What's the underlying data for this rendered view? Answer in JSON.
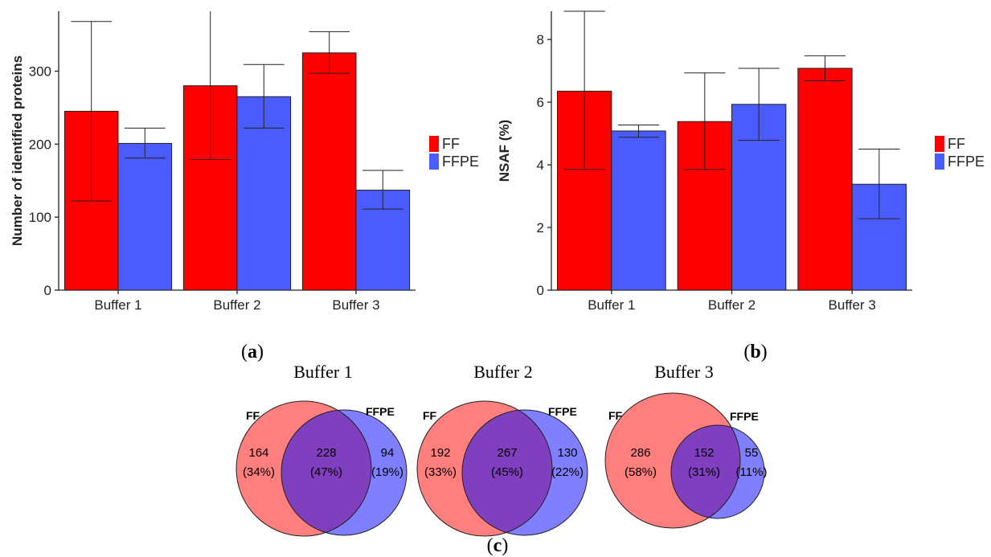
{
  "chart_data": [
    {
      "panel": "(a)",
      "type": "bar",
      "categories": [
        "Buffer 1",
        "Buffer 2",
        "Buffer 3"
      ],
      "series": [
        {
          "name": "FF",
          "color": "#ff0000",
          "values": [
            245,
            280,
            325
          ],
          "err_low": [
            122,
            179,
            297
          ],
          "err_high": [
            368,
            390,
            354
          ]
        },
        {
          "name": "FFPE",
          "color": "#4b5cff",
          "values": [
            201,
            265,
            137
          ],
          "err_low": [
            181,
            222,
            111
          ],
          "err_high": [
            222,
            309,
            164
          ]
        }
      ],
      "ylabel": "Number of identified proteins",
      "xlabel": "",
      "ylim": [
        0,
        382
      ],
      "yticks": [
        0,
        100,
        200,
        300
      ],
      "legend": "right",
      "grid": false
    },
    {
      "panel": "(b)",
      "type": "bar",
      "categories": [
        "Buffer 1",
        "Buffer 2",
        "Buffer 3"
      ],
      "series": [
        {
          "name": "FF",
          "color": "#ff0000",
          "values": [
            6.35,
            5.38,
            7.08
          ],
          "err_low": [
            3.85,
            3.85,
            6.68
          ],
          "err_high": [
            8.9,
            6.93,
            7.48
          ]
        },
        {
          "name": "FFPE",
          "color": "#4b5cff",
          "values": [
            5.08,
            5.93,
            3.38
          ],
          "err_low": [
            4.88,
            4.78,
            2.28
          ],
          "err_high": [
            5.27,
            7.08,
            4.5
          ]
        }
      ],
      "ylabel": "NSAF (%)",
      "xlabel": "",
      "ylim": [
        0,
        8.9
      ],
      "yticks": [
        0,
        2,
        4,
        6,
        8
      ],
      "legend": "right",
      "grid": false
    },
    {
      "panel": "(c)",
      "type": "venn",
      "sets": [
        "FF",
        "FFPE"
      ],
      "colors": {
        "FF": "#ff7f7f",
        "FFPE": "#7f7fff",
        "overlap": "#7f3fbf"
      },
      "diagrams": [
        {
          "title": "Buffer 1",
          "ff_only": "164",
          "ff_only_pct": "(34%)",
          "both": "228",
          "both_pct": "(47%)",
          "ffpe_only": "94",
          "ffpe_only_pct": "(19%)"
        },
        {
          "title": "Buffer 2",
          "ff_only": "192",
          "ff_only_pct": "(33%)",
          "both": "267",
          "both_pct": "(45%)",
          "ffpe_only": "130",
          "ffpe_only_pct": "(22%)"
        },
        {
          "title": "Buffer 3",
          "ff_only": "286",
          "ff_only_pct": "(58%)",
          "both": "152",
          "both_pct": "(31%)",
          "ffpe_only": "55",
          "ffpe_only_pct": "(11%)"
        }
      ]
    }
  ],
  "panel_labels": {
    "a": "a",
    "b": "b",
    "c": "c"
  }
}
